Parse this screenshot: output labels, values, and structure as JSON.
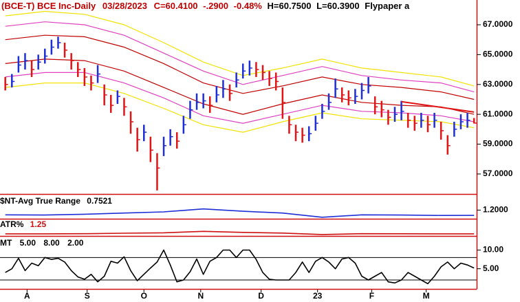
{
  "chart_data": [
    {
      "type": "ohlc",
      "title": "(BCE-T) BCE Inc-Daily",
      "date": "03/28/2023",
      "close_label": "C=60.4100",
      "change": "-.2900",
      "change_pct": "-0.48%",
      "high_label": "H=60.7500",
      "low_label": "L=60.3900",
      "study": "Flypaper a",
      "up_color": "#1e2ed6",
      "down_color": "#e01414",
      "high": [
        63.5,
        63.7,
        64.9,
        65.1,
        64.6,
        65.0,
        65.4,
        66.0,
        66.2,
        65.8,
        65.1,
        64.5,
        64.1,
        63.6,
        64.3,
        63.0,
        62.3,
        62.6,
        62.1,
        61.2,
        60.1,
        60.3,
        59.5,
        58.4,
        59.5,
        60.0,
        59.8,
        60.9,
        61.9,
        62.4,
        62.4,
        62.2,
        62.9,
        63.3,
        63.0,
        63.8,
        64.4,
        64.6,
        64.5,
        64.3,
        63.9,
        63.8,
        62.8,
        60.9,
        60.3,
        60.1,
        60.2,
        60.9,
        61.7,
        62.4,
        63.4,
        62.8,
        62.6,
        62.7,
        63.1,
        63.5,
        62.2,
        61.9,
        61.3,
        61.5,
        61.9,
        61.1,
        60.9,
        61.1,
        60.9,
        61.1,
        60.5,
        59.6,
        60.5,
        61.0,
        61.1,
        60.75
      ],
      "low": [
        62.6,
        62.8,
        63.8,
        64.0,
        63.5,
        64.0,
        64.4,
        65.0,
        65.4,
        64.8,
        64.0,
        63.5,
        62.9,
        62.6,
        63.1,
        61.6,
        61.1,
        61.7,
        60.9,
        59.7,
        58.5,
        59.2,
        57.8,
        55.9,
        58.2,
        58.9,
        58.7,
        59.7,
        60.7,
        61.3,
        61.4,
        61.1,
        61.8,
        62.1,
        61.9,
        62.8,
        63.4,
        63.6,
        63.5,
        63.3,
        62.9,
        62.6,
        60.7,
        59.7,
        59.2,
        59.1,
        59.2,
        59.9,
        60.7,
        61.3,
        62.1,
        61.8,
        61.6,
        61.7,
        62.0,
        62.4,
        61.0,
        60.8,
        60.3,
        60.5,
        60.6,
        60.1,
        59.9,
        60.1,
        59.8,
        60.1,
        59.3,
        58.3,
        59.5,
        60.0,
        60.1,
        60.39
      ],
      "close": [
        63.0,
        63.2,
        64.3,
        64.6,
        64.0,
        64.5,
        64.9,
        65.5,
        65.8,
        65.3,
        64.6,
        64.0,
        63.5,
        63.1,
        63.7,
        62.3,
        61.6,
        62.2,
        61.5,
        60.5,
        59.3,
        59.8,
        58.6,
        57.4,
        58.9,
        59.5,
        59.2,
        60.3,
        61.3,
        61.8,
        61.9,
        61.6,
        62.3,
        62.7,
        62.4,
        63.3,
        63.9,
        64.1,
        64.0,
        63.8,
        63.4,
        63.2,
        61.8,
        60.3,
        59.8,
        59.6,
        59.7,
        60.4,
        61.2,
        61.8,
        62.7,
        62.3,
        62.1,
        62.2,
        62.6,
        62.9,
        61.5,
        61.3,
        60.8,
        61.0,
        61.2,
        60.6,
        60.4,
        60.6,
        60.3,
        60.6,
        59.9,
        58.9,
        60.0,
        60.5,
        60.6,
        60.41
      ],
      "bands": {
        "x": [
          0,
          6,
          12,
          18,
          24,
          30,
          36,
          42,
          48,
          54,
          60,
          66,
          71
        ],
        "series": [
          {
            "color": "#f2e200",
            "values": [
              67.6,
              67.9,
              67.7,
              67.0,
              65.8,
              64.5,
              63.6,
              64.1,
              64.7,
              64.1,
              63.8,
              63.5,
              62.9
            ]
          },
          {
            "color": "#e040c0",
            "values": [
              66.9,
              67.2,
              67.0,
              66.3,
              65.1,
              63.9,
              63.0,
              63.6,
              64.2,
              63.6,
              63.3,
              63.1,
              62.5
            ]
          },
          {
            "color": "#c00000",
            "values": [
              66.0,
              66.3,
              66.2,
              65.5,
              64.4,
              63.1,
              62.4,
              62.9,
              63.5,
              63.0,
              62.8,
              62.5,
              62.0
            ]
          },
          {
            "color": "#c00000",
            "values": [
              64.4,
              64.7,
              64.6,
              63.9,
              62.8,
              61.7,
              61.0,
              61.7,
              62.3,
              61.8,
              61.6,
              61.5,
              61.0
            ]
          },
          {
            "color": "#e040c0",
            "values": [
              63.5,
              63.8,
              63.8,
              63.1,
              62.1,
              60.9,
              60.4,
              61.0,
              61.6,
              61.2,
              61.1,
              60.9,
              60.5
            ]
          },
          {
            "color": "#f2e200",
            "values": [
              62.8,
              63.1,
              63.1,
              62.4,
              61.4,
              60.3,
              59.8,
              60.5,
              61.1,
              60.7,
              60.6,
              60.5,
              60.1
            ]
          }
        ]
      },
      "trendline": {
        "x": [
          60,
          71
        ],
        "values": [
          61.85,
          61.15
        ],
        "color": "#e01414"
      },
      "xlim": [
        -0.8,
        71.4
      ],
      "ylim": [
        55.66,
        68.66
      ],
      "yticks": [
        {
          "value": 57,
          "label": "57.0000"
        },
        {
          "value": 59,
          "label": "59.0000"
        },
        {
          "value": 61,
          "label": "61.0000"
        },
        {
          "value": 63,
          "label": "63.0000"
        },
        {
          "value": 65,
          "label": "65.0000"
        },
        {
          "value": 67,
          "label": "67.0000"
        }
      ]
    },
    {
      "type": "line",
      "series": [
        {
          "name": "$NT-Avg True Range",
          "color": "#1e2ed6",
          "x": [
            0,
            6,
            12,
            18,
            24,
            30,
            36,
            42,
            48,
            54,
            60,
            66,
            71
          ],
          "values": [
            0.8,
            0.78,
            0.85,
            0.95,
            1.05,
            1.3,
            1.1,
            0.95,
            0.6,
            0.8,
            0.78,
            0.75,
            0.7521
          ]
        }
      ],
      "ylim": [
        0.47,
        2.44
      ],
      "yticks": [
        {
          "value": 1.2,
          "label": "1.2000"
        }
      ]
    },
    {
      "type": "line",
      "series": [
        {
          "name": "ATR%",
          "color": "#d01010",
          "x": [
            0,
            6,
            12,
            18,
            24,
            30,
            36,
            42,
            48,
            54,
            60,
            66,
            71
          ],
          "values": [
            1.25,
            1.24,
            1.3,
            1.45,
            1.6,
            2.1,
            1.75,
            1.5,
            1.0,
            1.3,
            1.27,
            1.24,
            1.25
          ]
        }
      ],
      "ylim": [
        0.5,
        6
      ]
    },
    {
      "type": "line",
      "name": "MT",
      "params": [
        "5.00",
        "8.00",
        "2.00"
      ],
      "series": [
        {
          "color": "#000000",
          "values": [
            4.0,
            5.0,
            7.8,
            4.5,
            6.5,
            5.8,
            8.0,
            7.5,
            7.8,
            6.8,
            4.5,
            2.8,
            2.2,
            3.5,
            1.5,
            3.0,
            7.0,
            6.5,
            8.2,
            4.5,
            1.8,
            3.5,
            5.2,
            6.8,
            10.0,
            6.0,
            1.5,
            2.0,
            4.2,
            7.6,
            3.5,
            7.0,
            8.0,
            10.0,
            10.0,
            8.0,
            10.0,
            10.0,
            7.5,
            4.0,
            2.2,
            2.0,
            2.0,
            2.0,
            4.0,
            6.8,
            4.0,
            7.0,
            8.0,
            6.8,
            5.0,
            7.6,
            8.0,
            6.5,
            3.0,
            2.0,
            3.0,
            4.0,
            1.5,
            1.2,
            2.0,
            4.0,
            3.0,
            2.0,
            1.0,
            3.0,
            5.5,
            6.8,
            5.0,
            6.5,
            6.0,
            5.2
          ]
        }
      ],
      "levels": [
        8,
        2
      ],
      "ylim": [
        -0.4,
        13.4
      ],
      "yticks": [
        {
          "value": 10,
          "label": "10.00"
        },
        {
          "value": 5,
          "label": "5.00"
        }
      ],
      "xticks": [
        {
          "value": 3.3,
          "label": "A"
        },
        {
          "value": 12.4,
          "label": "S"
        },
        {
          "value": 21.0,
          "label": "O"
        },
        {
          "value": 29.6,
          "label": "N"
        },
        {
          "value": 38.75,
          "label": "D"
        },
        {
          "value": 47.3,
          "label": "23"
        },
        {
          "value": 55.5,
          "label": "F"
        },
        {
          "value": 63.75,
          "label": "M"
        }
      ]
    }
  ]
}
